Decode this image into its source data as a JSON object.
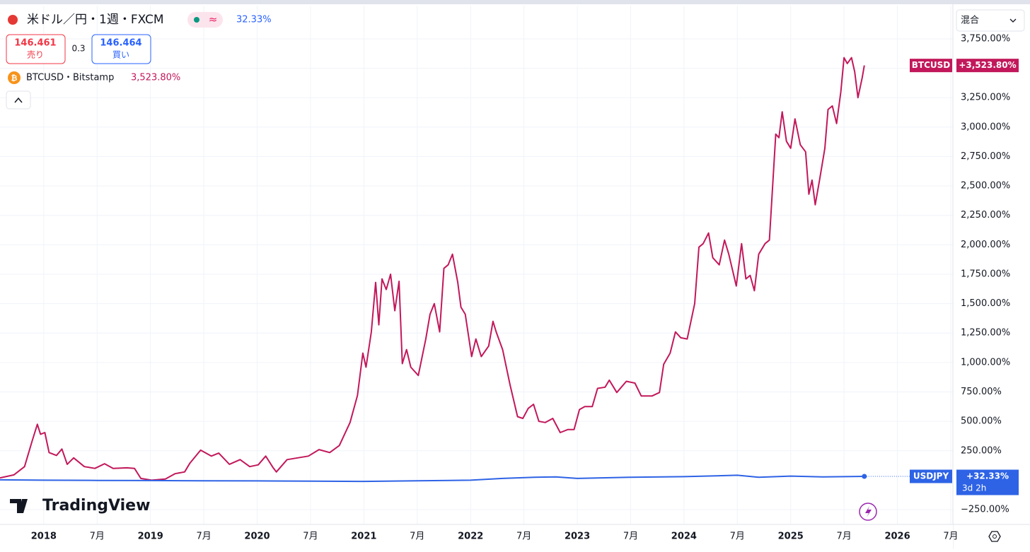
{
  "header": {
    "title": "米ドル／円・1週・FXCM",
    "change": "32.33%",
    "sell_price": "146.461",
    "sell_label": "売り",
    "spread": "0.3",
    "buy_price": "146.464",
    "buy_label": "買い"
  },
  "overlay": {
    "label": "BTCUSD・Bitstamp",
    "change": "3,523.80%"
  },
  "scale_mode": "混合",
  "logo": "TradingView",
  "chart_data": {
    "type": "line",
    "xlim": [
      2017.59,
      2026.52
    ],
    "xticks": [
      {
        "value": 2018,
        "label": "2018"
      },
      {
        "value": 2018.5,
        "label": "7月"
      },
      {
        "value": 2019,
        "label": "2019"
      },
      {
        "value": 2019.5,
        "label": "7月"
      },
      {
        "value": 2020,
        "label": "2020"
      },
      {
        "value": 2020.5,
        "label": "7月"
      },
      {
        "value": 2021,
        "label": "2021"
      },
      {
        "value": 2021.5,
        "label": "7月"
      },
      {
        "value": 2022,
        "label": "2022"
      },
      {
        "value": 2022.5,
        "label": "7月"
      },
      {
        "value": 2023,
        "label": "2023"
      },
      {
        "value": 2023.5,
        "label": "7月"
      },
      {
        "value": 2024,
        "label": "2024"
      },
      {
        "value": 2024.5,
        "label": "7月"
      },
      {
        "value": 2025,
        "label": "2025"
      },
      {
        "value": 2025.5,
        "label": "7月"
      },
      {
        "value": 2026,
        "label": "2026"
      },
      {
        "value": 2026.5,
        "label": "7月"
      }
    ],
    "ylim": [
      -376,
      4032
    ],
    "yticks": [
      {
        "value": -250,
        "label": "−250.00%"
      },
      {
        "value": 250,
        "label": "250.00%"
      },
      {
        "value": 500,
        "label": "500.00%"
      },
      {
        "value": 750,
        "label": "750.00%"
      },
      {
        "value": 1000,
        "label": "1,000.00%"
      },
      {
        "value": 1250,
        "label": "1,250.00%"
      },
      {
        "value": 1500,
        "label": "1,500.00%"
      },
      {
        "value": 1750,
        "label": "1,750.00%"
      },
      {
        "value": 2000,
        "label": "2,000.00%"
      },
      {
        "value": 2250,
        "label": "2,250.00%"
      },
      {
        "value": 2500,
        "label": "2,500.00%"
      },
      {
        "value": 2750,
        "label": "2,750.00%"
      },
      {
        "value": 3000,
        "label": "3,000.00%"
      },
      {
        "value": 3250,
        "label": "3,250.00%"
      },
      {
        "value": 3500,
        "label": "3,500.00%"
      },
      {
        "value": 3750,
        "label": "3,750.00%"
      }
    ],
    "grid": true,
    "series": [
      {
        "name": "BTCUSD",
        "color": "#c2185b",
        "last_label": "+3,523.80%",
        "x": [
          2017.59,
          2017.72,
          2017.82,
          2017.89,
          2017.94,
          2017.97,
          2018.01,
          2018.05,
          2018.12,
          2018.17,
          2018.22,
          2018.28,
          2018.38,
          2018.48,
          2018.57,
          2018.65,
          2018.78,
          2018.85,
          2018.91,
          2019.01,
          2019.14,
          2019.23,
          2019.32,
          2019.37,
          2019.47,
          2019.57,
          2019.64,
          2019.74,
          2019.84,
          2019.93,
          2020.01,
          2020.08,
          2020.15,
          2020.18,
          2020.28,
          2020.38,
          2020.48,
          2020.58,
          2020.68,
          2020.77,
          2020.87,
          2020.94,
          2020.99,
          2021.02,
          2021.07,
          2021.11,
          2021.14,
          2021.17,
          2021.21,
          2021.25,
          2021.29,
          2021.33,
          2021.36,
          2021.4,
          2021.44,
          2021.51,
          2021.58,
          2021.62,
          2021.66,
          2021.71,
          2021.75,
          2021.79,
          2021.83,
          2021.88,
          2021.91,
          2021.95,
          2022.01,
          2022.05,
          2022.1,
          2022.17,
          2022.21,
          2022.24,
          2022.3,
          2022.37,
          2022.44,
          2022.49,
          2022.54,
          2022.59,
          2022.64,
          2022.7,
          2022.77,
          2022.84,
          2022.91,
          2022.97,
          2023.02,
          2023.07,
          2023.14,
          2023.19,
          2023.26,
          2023.3,
          2023.37,
          2023.46,
          2023.54,
          2023.6,
          2023.7,
          2023.77,
          2023.81,
          2023.87,
          2023.92,
          2023.97,
          2024.03,
          2024.1,
          2024.14,
          2024.18,
          2024.23,
          2024.27,
          2024.33,
          2024.38,
          2024.42,
          2024.49,
          2024.54,
          2024.58,
          2024.62,
          2024.66,
          2024.7,
          2024.76,
          2024.8,
          2024.86,
          2024.89,
          2024.92,
          2024.96,
          2025.0,
          2025.04,
          2025.09,
          2025.14,
          2025.17,
          2025.2,
          2025.23,
          2025.27,
          2025.32,
          2025.35,
          2025.39,
          2025.43,
          2025.47,
          2025.5,
          2025.53,
          2025.57,
          2025.6,
          2025.63,
          2025.67,
          2025.69
        ],
        "values": [
          20,
          45,
          115,
          330,
          475,
          390,
          405,
          235,
          210,
          265,
          135,
          190,
          115,
          100,
          140,
          100,
          105,
          100,
          15,
          0,
          10,
          55,
          70,
          145,
          255,
          205,
          230,
          135,
          175,
          115,
          130,
          205,
          105,
          70,
          175,
          190,
          205,
          260,
          235,
          295,
          490,
          720,
          1080,
          960,
          1260,
          1680,
          1320,
          1710,
          1620,
          1750,
          1440,
          1690,
          990,
          1110,
          960,
          890,
          1200,
          1410,
          1500,
          1260,
          1800,
          1830,
          1920,
          1680,
          1470,
          1410,
          1050,
          1200,
          1050,
          1140,
          1350,
          1260,
          1110,
          810,
          540,
          525,
          610,
          645,
          500,
          490,
          525,
          405,
          430,
          430,
          600,
          625,
          625,
          780,
          790,
          850,
          745,
          840,
          825,
          715,
          715,
          745,
          985,
          1080,
          1260,
          1210,
          1200,
          1500,
          1980,
          2010,
          2100,
          1890,
          1830,
          2040,
          1920,
          1650,
          2010,
          1710,
          1740,
          1610,
          1920,
          2010,
          2040,
          2940,
          2910,
          3130,
          2880,
          2820,
          3070,
          2850,
          2790,
          2430,
          2550,
          2340,
          2550,
          2820,
          3150,
          3180,
          3030,
          3300,
          3590,
          3540,
          3590,
          3470,
          3250,
          3420,
          3523.8
        ]
      },
      {
        "name": "USDJPY",
        "color": "#2e63e6",
        "last_label": "+32.33%",
        "countdown": "3d 2h",
        "x": [
          2017.59,
          2018.0,
          2018.5,
          2019.0,
          2019.5,
          2020.0,
          2020.5,
          2021.0,
          2021.5,
          2022.0,
          2022.3,
          2022.6,
          2022.8,
          2023.0,
          2023.5,
          2024.0,
          2024.5,
          2024.7,
          2025.0,
          2025.3,
          2025.69
        ],
        "values": [
          3,
          0,
          -2,
          -3,
          -5,
          -6,
          -8,
          -10,
          -5,
          0,
          15,
          25,
          28,
          15,
          25,
          30,
          42,
          25,
          35,
          28,
          32.33
        ]
      }
    ]
  }
}
